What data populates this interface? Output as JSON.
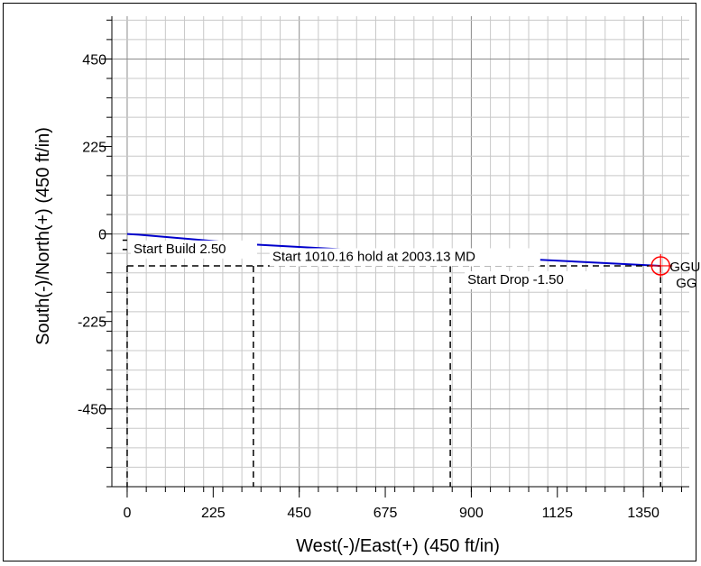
{
  "chart_data": {
    "type": "line",
    "title": "",
    "xlabel": "West(-)/East(+) (450 ft/in)",
    "ylabel": "South(-)/North(+) (450 ft/in)",
    "xlim": [
      -40,
      1470
    ],
    "ylim": [
      -650,
      560
    ],
    "x_ticks": [
      0,
      225,
      450,
      675,
      900,
      1125,
      1350
    ],
    "y_ticks": [
      450,
      225,
      0,
      -225,
      -450
    ],
    "grid": true,
    "series": [
      {
        "color": "#0000cc",
        "x": [
          0,
          30,
          330,
          845,
          1395
        ],
        "y": [
          0,
          -2,
          -27,
          -55,
          -82
        ]
      }
    ],
    "annotations": [
      {
        "text": "Start Build 2.50",
        "x": 0,
        "y": -40
      },
      {
        "text": "Start 1010.16 hold at 2003.13 MD",
        "x": 330,
        "y": -82
      },
      {
        "text": "Start Drop -1.50",
        "x": 845,
        "y": -82
      },
      {
        "text": "GGU",
        "x": 1395,
        "y": -82
      },
      {
        "text": "GG",
        "x": 1395,
        "y": -82
      }
    ],
    "colors": {
      "path": "#0000cc",
      "target": "#ff0000",
      "grid": "#a0a0a0"
    }
  }
}
